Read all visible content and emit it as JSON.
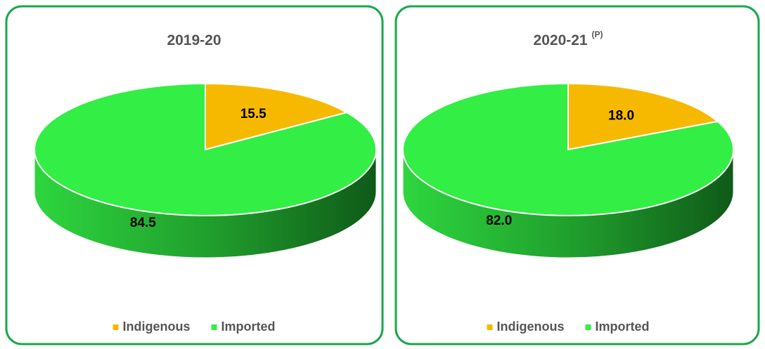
{
  "chart_data": [
    {
      "type": "pie",
      "title": "2019-20",
      "categories": [
        "Indigenous",
        "Imported"
      ],
      "values": [
        15.5,
        84.5
      ],
      "colors": [
        "#f7b900",
        "#33ee44"
      ],
      "legend": "bottom"
    },
    {
      "type": "pie",
      "title": "2020-21",
      "title_note": "(P)",
      "categories": [
        "Indigenous",
        "Imported"
      ],
      "values": [
        18.0,
        82.0
      ],
      "value_labels": [
        "18.0",
        "82.0"
      ],
      "colors": [
        "#f7b900",
        "#33ee44"
      ],
      "legend": "bottom"
    }
  ]
}
